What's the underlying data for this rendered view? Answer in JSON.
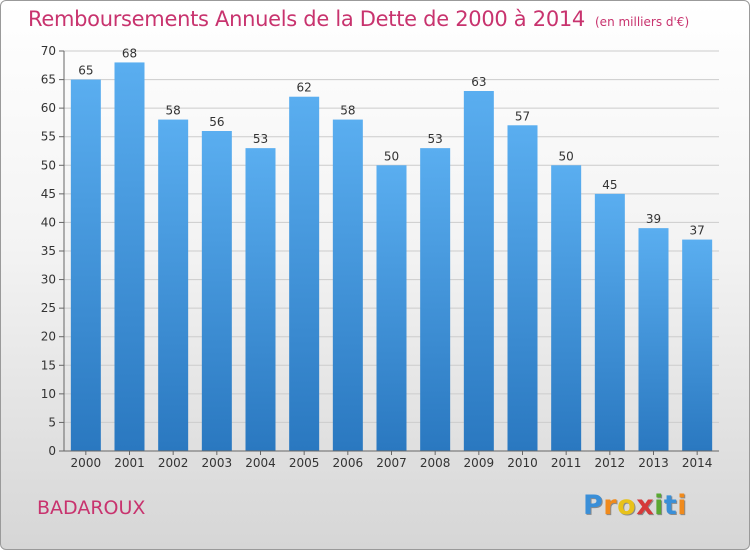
{
  "title": "Remboursements Annuels de la Dette de 2000 à 2014",
  "subtitle": "(en milliers d'€)",
  "commune": "BADAROUX",
  "logo": {
    "letters": [
      "P",
      "r",
      "o",
      "x",
      "i",
      "t",
      "i"
    ],
    "colors": [
      "#3a8fd8",
      "#f08a1c",
      "#e8c21a",
      "#d63a3a",
      "#5aa832",
      "#3a8fd8",
      "#f08a1c"
    ]
  },
  "colors": {
    "bar_top": "#5aaef0",
    "bar_bottom": "#2a78c0",
    "title": "#c8336e",
    "text": "#333333",
    "grid": "#cccccc"
  },
  "chart_data": {
    "type": "bar",
    "categories": [
      "2000",
      "2001",
      "2002",
      "2003",
      "2004",
      "2005",
      "2006",
      "2007",
      "2008",
      "2009",
      "2010",
      "2011",
      "2012",
      "2013",
      "2014"
    ],
    "values": [
      65,
      68,
      58,
      56,
      53,
      62,
      58,
      50,
      53,
      63,
      57,
      50,
      45,
      39,
      37
    ],
    "ylim": [
      0,
      70
    ],
    "yticks": [
      0,
      5,
      10,
      15,
      20,
      25,
      30,
      35,
      40,
      45,
      50,
      55,
      60,
      65,
      70
    ],
    "grid": true,
    "data_labels": true
  }
}
